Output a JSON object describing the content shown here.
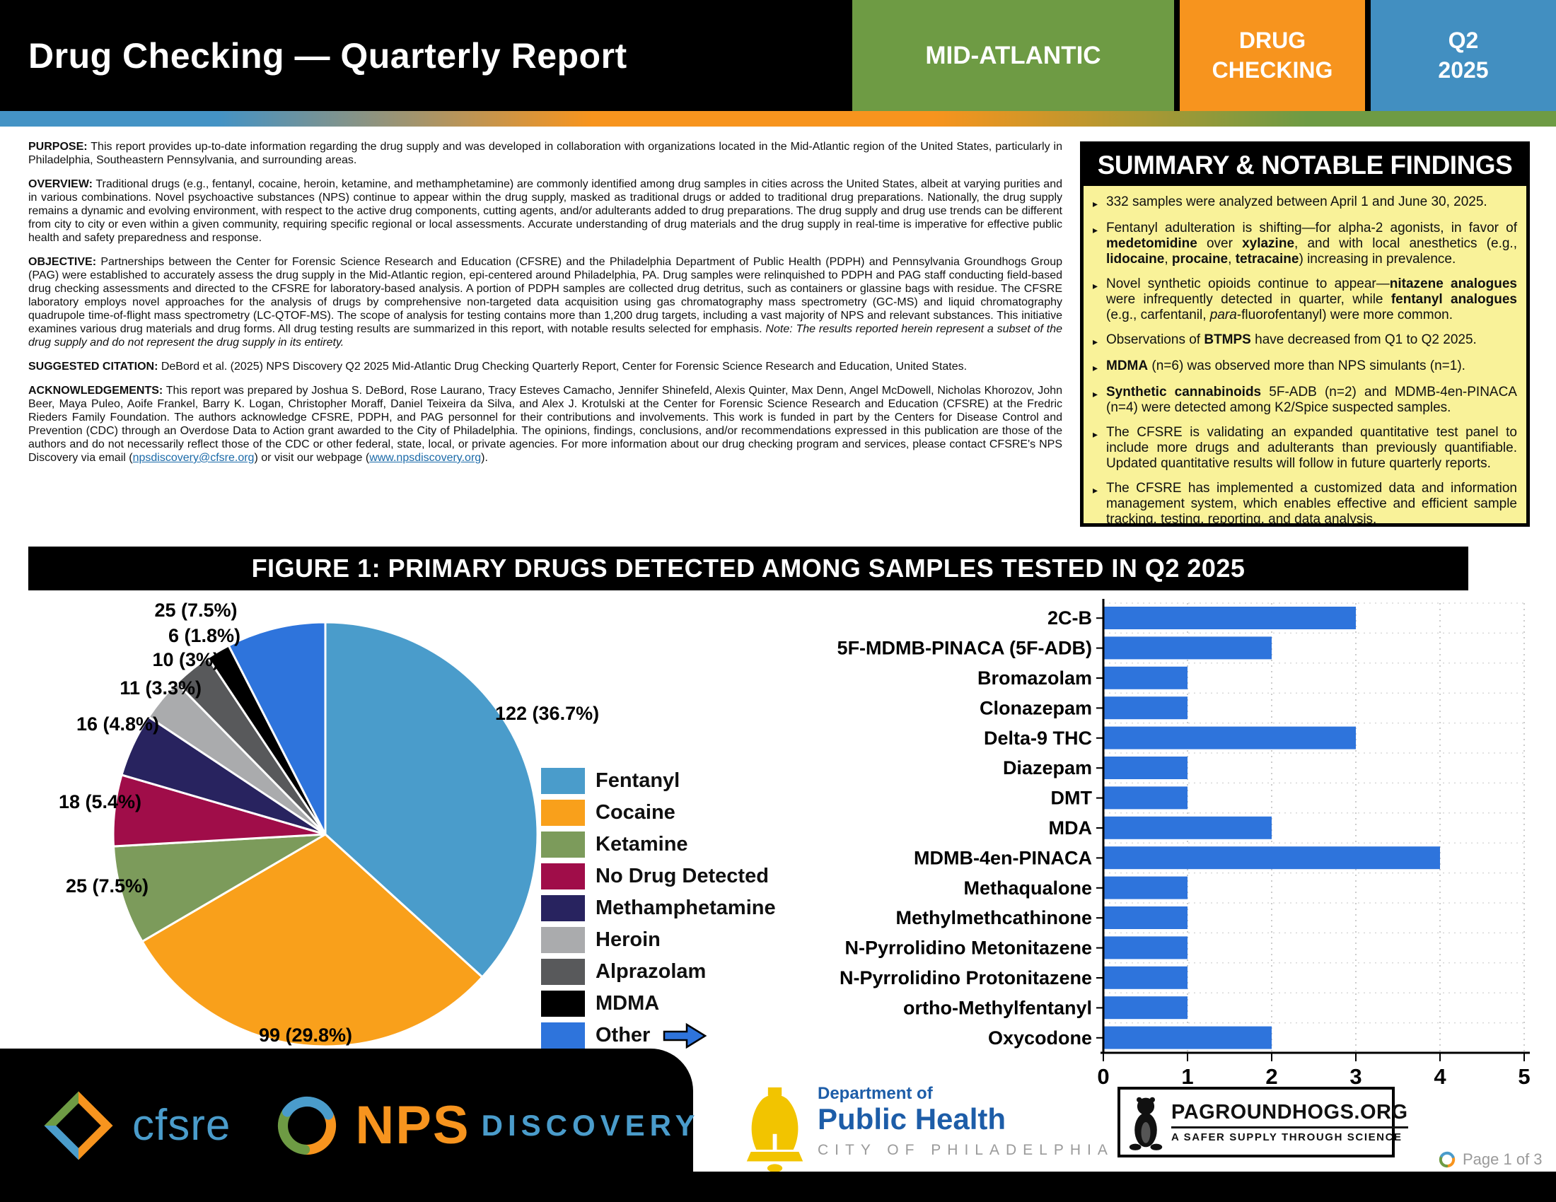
{
  "header": {
    "title": "Drug Checking — Quarterly Report",
    "region": "MID-ATLANTIC",
    "program_line1": "DRUG",
    "program_line2": "CHECKING",
    "quarter_line1": "Q2",
    "quarter_line2": "2025"
  },
  "colors": {
    "header_green": "#6E9B44",
    "header_orange": "#F7941E",
    "header_blue": "#428FC1",
    "summary_bg": "#F9F299",
    "link_blue": "#1B6AA8",
    "bar_blue": "#2E74DC"
  },
  "sections": [
    {
      "id": "purpose",
      "runs": [
        {
          "t": "PURPOSE:",
          "b": true
        },
        {
          "t": " This report provides up-to-date information regarding the drug supply and was developed in collaboration with organizations located in the Mid-Atlantic region of the United States, particularly in Philadelphia, Southeastern Pennsylvania, and surrounding areas."
        }
      ]
    },
    {
      "id": "overview",
      "runs": [
        {
          "t": "OVERVIEW:",
          "b": true
        },
        {
          "t": " Traditional drugs (e.g., fentanyl, cocaine, heroin, ketamine, and methamphetamine) are commonly identified among drug samples in cities across the United States, albeit at varying purities and in various combinations. Novel psychoactive substances (NPS) continue to appear within the drug supply, masked as traditional drugs or added to traditional drug preparations. Nationally, the drug supply remains a dynamic and evolving environment, with respect to the active drug components, cutting agents, and/or adulterants added to drug preparations. The drug supply and drug use trends can be different from city to city or even within a given community, requiring specific regional or local assessments. Accurate understanding of drug materials and the drug supply in real-time is imperative for effective public health and safety preparedness and response."
        }
      ]
    },
    {
      "id": "objective",
      "runs": [
        {
          "t": "OBJECTIVE:",
          "b": true
        },
        {
          "t": " Partnerships between the Center for Forensic Science Research and Education (CFSRE) and the Philadelphia Department of Public Health (PDPH) and Pennsylvania Groundhogs Group (PAG) were established to accurately assess the drug supply in the Mid-Atlantic region, epi-centered around Philadelphia, PA. Drug samples were relinquished to PDPH and PAG staff conducting field-based drug checking assessments and directed to the CFSRE for laboratory-based analysis. A portion of PDPH samples are collected drug detritus, such as containers or glassine bags with residue. The CFSRE laboratory employs novel approaches for the analysis of drugs by comprehensive non-targeted data acquisition using gas chromatography mass spectrometry (GC-MS) and liquid chromatography quadrupole time-of-flight mass spectrometry (LC-QTOF-MS). The scope of analysis for testing contains more than 1,200 drug targets, including a vast majority of NPS and relevant substances. This initiative examines various drug materials and drug forms. All drug testing results are summarized in this report, with notable results selected for emphasis. "
        },
        {
          "t": "Note: The results reported herein represent a subset of the drug supply and do not represent the drug supply in its entirety.",
          "i": true
        }
      ]
    },
    {
      "id": "citation",
      "runs": [
        {
          "t": "SUGGESTED CITATION:",
          "b": true
        },
        {
          "t": " DeBord et al. (2025) NPS Discovery Q2 2025 Mid-Atlantic Drug Checking Quarterly Report, Center for Forensic Science Research and Education, United States."
        }
      ]
    },
    {
      "id": "acknowledgements",
      "runs": [
        {
          "t": "ACKNOWLEDGEMENTS:",
          "b": true
        },
        {
          "t": " This report was prepared by Joshua S. DeBord, Rose Laurano, Tracy Esteves Camacho, Jennifer Shinefeld, Alexis Quinter, Max Denn, Angel McDowell, Nicholas Khorozov, John Beer, Maya Puleo, Aoife Frankel, Barry K. Logan, Christopher Moraff, Daniel Teixeira da Silva, and Alex J. Krotulski at the Center for Forensic Science Research and Education (CFSRE) at the Fredric Rieders Family Foundation. The authors acknowledge CFSRE, PDPH, and PAG personnel for their contributions and involvements. This work is funded in part by the Centers for Disease Control and Prevention (CDC) through an Overdose Data to Action grant awarded to the City of Philadelphia. The opinions, findings, conclusions, and/or recommendations expressed in this publication are those of the authors and do not necessarily reflect those of the CDC or other federal, state, local, or private agencies. For more information about our drug checking program and services, please contact CFSRE's NPS Discovery via email ("
        },
        {
          "t": "npsdiscovery@cfsre.org",
          "link": true
        },
        {
          "t": ") or visit our webpage ("
        },
        {
          "t": "www.npsdiscovery.org",
          "link": true
        },
        {
          "t": ")."
        }
      ]
    }
  ],
  "summary": {
    "title": "SUMMARY & NOTABLE FINDINGS",
    "bullets": [
      {
        "runs": [
          {
            "t": "332 samples were analyzed between April 1 and June 30, 2025."
          }
        ]
      },
      {
        "runs": [
          {
            "t": "Fentanyl adulteration is shifting—for alpha-2 agonists, in favor of "
          },
          {
            "t": "medetomidine",
            "b": true
          },
          {
            "t": " over "
          },
          {
            "t": "xylazine",
            "b": true
          },
          {
            "t": ", and with local anesthetics (e.g., "
          },
          {
            "t": "lidocaine",
            "b": true
          },
          {
            "t": ", "
          },
          {
            "t": "procaine",
            "b": true
          },
          {
            "t": ", "
          },
          {
            "t": "tetracaine",
            "b": true
          },
          {
            "t": ") increasing in prevalence."
          }
        ]
      },
      {
        "runs": [
          {
            "t": "Novel synthetic opioids continue to appear—"
          },
          {
            "t": "nitazene analogues",
            "b": true
          },
          {
            "t": " were infrequently detected in quarter, while "
          },
          {
            "t": "fentanyl analogues",
            "b": true
          },
          {
            "t": " (e.g., carfentanil, "
          },
          {
            "t": "para",
            "i": true
          },
          {
            "t": "-fluorofentanyl) were more common."
          }
        ]
      },
      {
        "runs": [
          {
            "t": "Observations of "
          },
          {
            "t": "BTMPS",
            "b": true
          },
          {
            "t": " have decreased from Q1 to Q2 2025."
          }
        ]
      },
      {
        "runs": [
          {
            "t": "MDMA",
            "b": true
          },
          {
            "t": " (n=6) was observed more than NPS simulants (n=1)."
          }
        ]
      },
      {
        "runs": [
          {
            "t": "Synthetic cannabinoids",
            "b": true
          },
          {
            "t": " 5F-ADB (n=2) and MDMB-4en-PINACA (n=4) were detected among K2/Spice suspected samples."
          }
        ]
      },
      {
        "runs": [
          {
            "t": "The CFSRE is validating an expanded quantitative test panel to include more drugs and adulterants than previously quantifiable. Updated quantitative results will follow in future quarterly reports."
          }
        ]
      },
      {
        "runs": [
          {
            "t": "The CFSRE has implemented a customized data and information management system, which enables effective and efficient sample tracking, testing, reporting, and data analysis."
          }
        ]
      }
    ]
  },
  "figure": {
    "title": "FIGURE 1: PRIMARY DRUGS DETECTED AMONG SAMPLES TESTED IN Q2 2025"
  },
  "chart_data": [
    {
      "type": "pie",
      "title": "Primary drugs detected among samples tested in Q2 2025",
      "total_samples": 332,
      "legend_position": "right",
      "legend_arrow_icon": "arrow-right-icon",
      "slices": [
        {
          "label": "Fentanyl",
          "value": 122,
          "pct": "36.7%",
          "color": "#4A9CCB"
        },
        {
          "label": "Cocaine",
          "value": 99,
          "pct": "29.8%",
          "color": "#F9A01B"
        },
        {
          "label": "Ketamine",
          "value": 25,
          "pct": "7.5%",
          "color": "#7C9B5B"
        },
        {
          "label": "No Drug Detected",
          "value": 18,
          "pct": "5.4%",
          "color": "#A00D49"
        },
        {
          "label": "Methamphetamine",
          "value": 16,
          "pct": "4.8%",
          "color": "#28235F"
        },
        {
          "label": "Heroin",
          "value": 11,
          "pct": "3.3%",
          "color": "#AAABAD"
        },
        {
          "label": "Alprazolam",
          "value": 10,
          "pct": "3%",
          "color": "#58595B"
        },
        {
          "label": "MDMA",
          "value": 6,
          "pct": "1.8%",
          "color": "#000000"
        },
        {
          "label": "Other",
          "value": 25,
          "pct": "7.5%",
          "color": "#2E74DC"
        }
      ]
    },
    {
      "type": "bar",
      "orientation": "horizontal",
      "categories": [
        "2C-B",
        "5F-MDMB-PINACA (5F-ADB)",
        "Bromazolam",
        "Clonazepam",
        "Delta-9 THC",
        "Diazepam",
        "DMT",
        "MDA",
        "MDMB-4en-PINACA",
        "Methaqualone",
        "Methylmethcathinone",
        "N-Pyrrolidino Metonitazene",
        "N-Pyrrolidino Protonitazene",
        "ortho-Methylfentanyl",
        "Oxycodone"
      ],
      "values": [
        3,
        2,
        1,
        1,
        3,
        1,
        1,
        2,
        4,
        1,
        1,
        1,
        1,
        1,
        2
      ],
      "xlabel": "",
      "ylabel": "",
      "xlim": [
        0,
        5
      ],
      "xticks": [
        0,
        1,
        2,
        3,
        4,
        5
      ],
      "grid": true,
      "bar_color": "#2E74DC"
    }
  ],
  "footer": {
    "cfsre_label": "cfsre",
    "nps_label": "NPS",
    "discovery_label": "DISCOVERY",
    "dph_line1": "Department of",
    "dph_line2": "Public Health",
    "dph_line3": "CITY OF PHILADELPHIA",
    "groundhogs_title": "PAGROUNDHOGS.ORG",
    "groundhogs_sub": "A SAFER SUPPLY THROUGH SCIENCE",
    "page_label": "Page 1 of 3"
  }
}
